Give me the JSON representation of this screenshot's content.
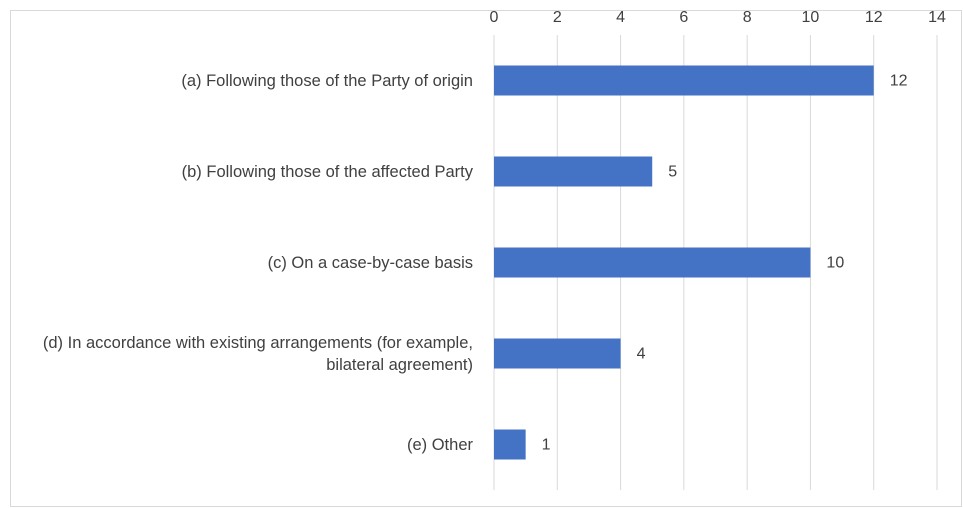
{
  "chart_data": {
    "type": "bar",
    "orientation": "horizontal",
    "categories": [
      "(a) Following those of the Party of origin",
      "(b) Following those of the affected Party",
      "(c) On a case-by-case basis",
      "(d) In accordance with existing arrangements (for example, bilateral agreement)",
      "(e) Other"
    ],
    "values": [
      12,
      5,
      10,
      4,
      1
    ],
    "color": "#4472c4",
    "xlim": [
      0,
      14
    ],
    "xticks": [
      0,
      2,
      4,
      6,
      8,
      10,
      12,
      14
    ],
    "grid": true
  }
}
